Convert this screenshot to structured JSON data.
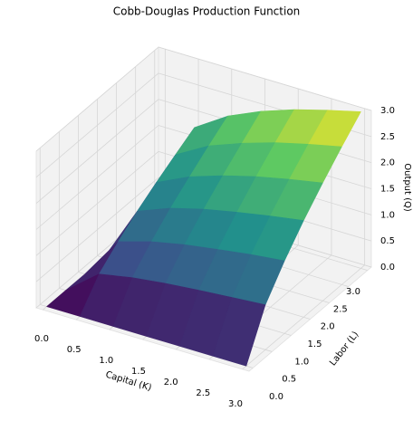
{
  "chart_data": {
    "type": "surface",
    "title": "Cobb-Douglas Production Function",
    "x_label": "Capital (K)",
    "y_label": "Labor (L)",
    "z_label": "Output (Q)",
    "x": [
      0,
      0.5,
      1,
      1.5,
      2,
      2.5,
      3
    ],
    "y": [
      0,
      0.5,
      1,
      1.5,
      2,
      2.5,
      3
    ],
    "z": [
      [
        0,
        0,
        0,
        0,
        0,
        0,
        0
      ],
      [
        0,
        0.5,
        0.62,
        0.7,
        0.76,
        0.81,
        0.86
      ],
      [
        0,
        0.81,
        1,
        1.13,
        1.23,
        1.32,
        1.39
      ],
      [
        0,
        1.08,
        1.33,
        1.5,
        1.63,
        1.75,
        1.85
      ],
      [
        0,
        1.32,
        1.62,
        1.83,
        2,
        2.14,
        2.26
      ],
      [
        0,
        1.54,
        1.9,
        2.14,
        2.34,
        2.5,
        2.64
      ],
      [
        0,
        1.75,
        2.16,
        2.44,
        2.66,
        2.84,
        3
      ]
    ],
    "xlim": [
      -0.1,
      3.1
    ],
    "ylim": [
      -0.1,
      3.1
    ],
    "zlim": [
      0,
      3
    ],
    "xticks": [
      {
        "value": 0,
        "label": "0.0"
      },
      0.5,
      {
        "value": 1,
        "label": "1.0"
      },
      1.5,
      {
        "value": 2,
        "label": "2.0"
      },
      2.5,
      {
        "value": 3,
        "label": "3.0"
      }
    ],
    "yticks": [
      {
        "value": 0,
        "label": "0.0"
      },
      0.5,
      {
        "value": 1,
        "label": "1.0"
      },
      1.5,
      {
        "value": 2,
        "label": "2.0"
      },
      2.5,
      {
        "value": 3,
        "label": "3.0"
      }
    ],
    "zticks": [
      {
        "value": 0,
        "label": "0.0"
      },
      0.5,
      {
        "value": 1,
        "label": "1.0"
      },
      1.5,
      {
        "value": 2,
        "label": "2.0"
      },
      2.5,
      {
        "value": 3,
        "label": "3.0"
      }
    ],
    "colormap": [
      "#440154",
      "#3b528b",
      "#21918c",
      "#5ec962",
      "#fde725"
    ],
    "grid": true
  }
}
